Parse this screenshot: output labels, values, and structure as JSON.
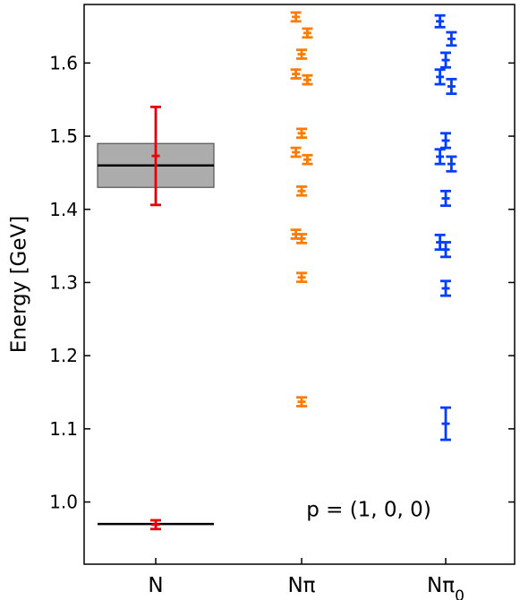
{
  "chart_data": {
    "type": "scatter",
    "ylabel": "Energy [GeV]",
    "ylim": [
      0.915,
      1.68
    ],
    "yticks": [
      1.0,
      1.1,
      1.2,
      1.3,
      1.4,
      1.5,
      1.6
    ],
    "ytick_labels": [
      "1.0",
      "1.1",
      "1.2",
      "1.3",
      "1.4",
      "1.5",
      "1.6"
    ],
    "categories": [
      "N",
      "Nπ",
      "Nπ0"
    ],
    "annotation": "p = (1, 0, 0)",
    "reference_lines": [
      {
        "category": "N",
        "value": 0.97,
        "color": "#000000"
      },
      {
        "category": "N",
        "value": 1.46,
        "color": "#000000"
      }
    ],
    "reference_band": {
      "category": "N",
      "low": 1.43,
      "high": 1.49,
      "color": "#808080"
    },
    "series": [
      {
        "category": "N",
        "color": "#e8000b",
        "points": [
          {
            "offset": 0.0,
            "y": 0.969,
            "err": 0.006
          },
          {
            "offset": 0.0,
            "y": 1.473,
            "err": 0.067
          }
        ]
      },
      {
        "category": "Nπ",
        "color": "#ff7c00",
        "points": [
          {
            "offset": -0.08,
            "y": 1.663,
            "err": 0.006
          },
          {
            "offset": 0.08,
            "y": 1.641,
            "err": 0.006
          },
          {
            "offset": 0.0,
            "y": 1.612,
            "err": 0.006
          },
          {
            "offset": -0.08,
            "y": 1.585,
            "err": 0.006
          },
          {
            "offset": 0.08,
            "y": 1.577,
            "err": 0.006
          },
          {
            "offset": 0.0,
            "y": 1.504,
            "err": 0.006
          },
          {
            "offset": -0.08,
            "y": 1.478,
            "err": 0.006
          },
          {
            "offset": 0.08,
            "y": 1.468,
            "err": 0.006
          },
          {
            "offset": 0.0,
            "y": 1.425,
            "err": 0.006
          },
          {
            "offset": -0.08,
            "y": 1.366,
            "err": 0.006
          },
          {
            "offset": 0.0,
            "y": 1.36,
            "err": 0.006
          },
          {
            "offset": 0.0,
            "y": 1.307,
            "err": 0.006
          },
          {
            "offset": 0.0,
            "y": 1.137,
            "err": 0.006
          }
        ]
      },
      {
        "category": "Nπ0",
        "color": "#023eff",
        "points": [
          {
            "offset": -0.08,
            "y": 1.657,
            "err": 0.008
          },
          {
            "offset": 0.08,
            "y": 1.633,
            "err": 0.009
          },
          {
            "offset": 0.0,
            "y": 1.604,
            "err": 0.01
          },
          {
            "offset": -0.08,
            "y": 1.581,
            "err": 0.01
          },
          {
            "offset": 0.08,
            "y": 1.568,
            "err": 0.01
          },
          {
            "offset": 0.0,
            "y": 1.494,
            "err": 0.01
          },
          {
            "offset": -0.08,
            "y": 1.472,
            "err": 0.01
          },
          {
            "offset": 0.08,
            "y": 1.462,
            "err": 0.01
          },
          {
            "offset": 0.0,
            "y": 1.415,
            "err": 0.01
          },
          {
            "offset": -0.08,
            "y": 1.355,
            "err": 0.01
          },
          {
            "offset": 0.0,
            "y": 1.345,
            "err": 0.01
          },
          {
            "offset": 0.0,
            "y": 1.292,
            "err": 0.01
          },
          {
            "offset": 0.0,
            "y": 1.107,
            "err": 0.022
          }
        ]
      }
    ]
  }
}
